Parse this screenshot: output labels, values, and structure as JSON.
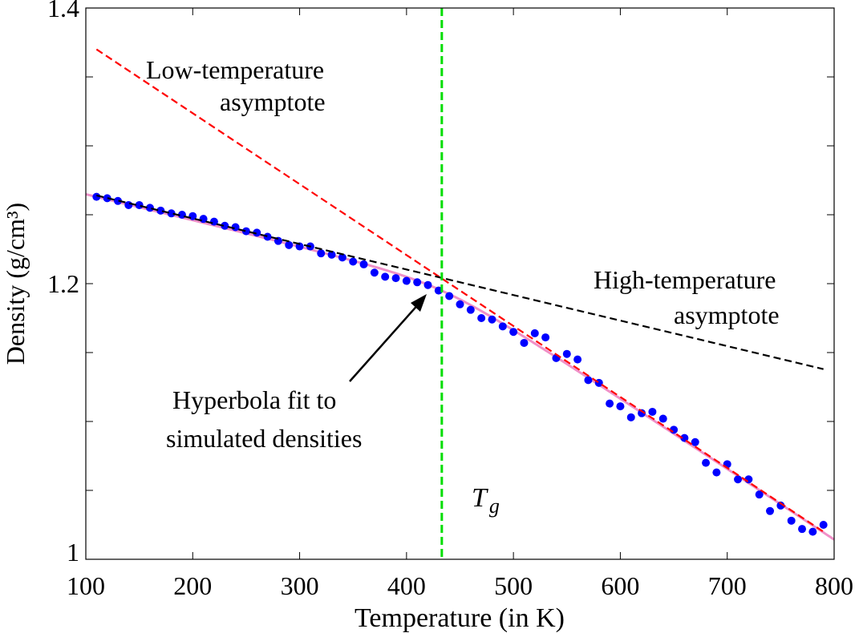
{
  "chart_data": {
    "type": "scatter",
    "title": "",
    "xlabel": "Temperature (in K)",
    "ylabel": "Density (g/cm³)",
    "xlim": [
      100,
      800
    ],
    "ylim": [
      1.0,
      1.4
    ],
    "xticks": [
      100,
      200,
      300,
      400,
      500,
      600,
      700,
      800
    ],
    "xtick_labels": [
      "100",
      "200",
      "300",
      "400",
      "500",
      "600",
      "700",
      "800"
    ],
    "yticks": [
      1.0,
      1.2,
      1.4
    ],
    "ytick_labels": [
      "1",
      "1.2",
      "1.4"
    ],
    "yminor_step": 0.05,
    "grid": false,
    "series": [
      {
        "name": "Simulated densities",
        "kind": "points",
        "color": "#0000ff",
        "x": [
          110,
          120,
          130,
          140,
          150,
          160,
          170,
          180,
          190,
          200,
          210,
          220,
          230,
          240,
          250,
          260,
          270,
          280,
          290,
          300,
          310,
          320,
          330,
          340,
          350,
          360,
          370,
          380,
          390,
          400,
          410,
          420,
          430,
          440,
          450,
          460,
          470,
          480,
          490,
          500,
          510,
          520,
          530,
          540,
          550,
          560,
          570,
          580,
          590,
          600,
          610,
          620,
          630,
          640,
          650,
          660,
          670,
          680,
          690,
          700,
          710,
          720,
          730,
          740,
          750,
          760,
          770,
          780,
          790
        ],
        "y": [
          1.263,
          1.262,
          1.26,
          1.257,
          1.257,
          1.255,
          1.253,
          1.251,
          1.25,
          1.249,
          1.247,
          1.245,
          1.242,
          1.241,
          1.238,
          1.237,
          1.234,
          1.231,
          1.228,
          1.227,
          1.227,
          1.222,
          1.221,
          1.219,
          1.216,
          1.214,
          1.208,
          1.205,
          1.204,
          1.202,
          1.201,
          1.199,
          1.195,
          1.191,
          1.185,
          1.181,
          1.175,
          1.174,
          1.169,
          1.165,
          1.157,
          1.164,
          1.161,
          1.146,
          1.149,
          1.145,
          1.13,
          1.128,
          1.113,
          1.111,
          1.103,
          1.106,
          1.107,
          1.102,
          1.094,
          1.088,
          1.085,
          1.07,
          1.063,
          1.069,
          1.058,
          1.058,
          1.047,
          1.035,
          1.039,
          1.028,
          1.022,
          1.02,
          1.025
        ]
      },
      {
        "name": "Low-temperature asymptote",
        "kind": "dashed-line",
        "color": "#ff0000",
        "x": [
          110,
          790
        ],
        "y": [
          1.37,
          1.02
        ]
      },
      {
        "name": "High-temperature asymptote",
        "kind": "dashed-line",
        "color": "#000000",
        "x": [
          110,
          790
        ],
        "y": [
          1.264,
          1.138
        ]
      },
      {
        "name": "Hyperbola fit",
        "kind": "curve",
        "color": "#f090c8",
        "Tg": 433,
        "d0": 1.204,
        "slope_low_T": -0.000185,
        "slope_high_T": -0.000515,
        "width": 55,
        "x_range": [
          100,
          800
        ]
      },
      {
        "name": "Tg",
        "kind": "vertical-dashed",
        "color": "#00dd00",
        "x": 433
      }
    ],
    "annotations": {
      "low_asym_1": "Low-temperature",
      "low_asym_2": "asymptote",
      "high_asym_1": "High-temperature",
      "high_asym_2": "asymptote",
      "hyperbola_1": "Hyperbola fit to",
      "hyperbola_2": "simulated densities",
      "tg_main": "T",
      "tg_sub": "g"
    }
  }
}
